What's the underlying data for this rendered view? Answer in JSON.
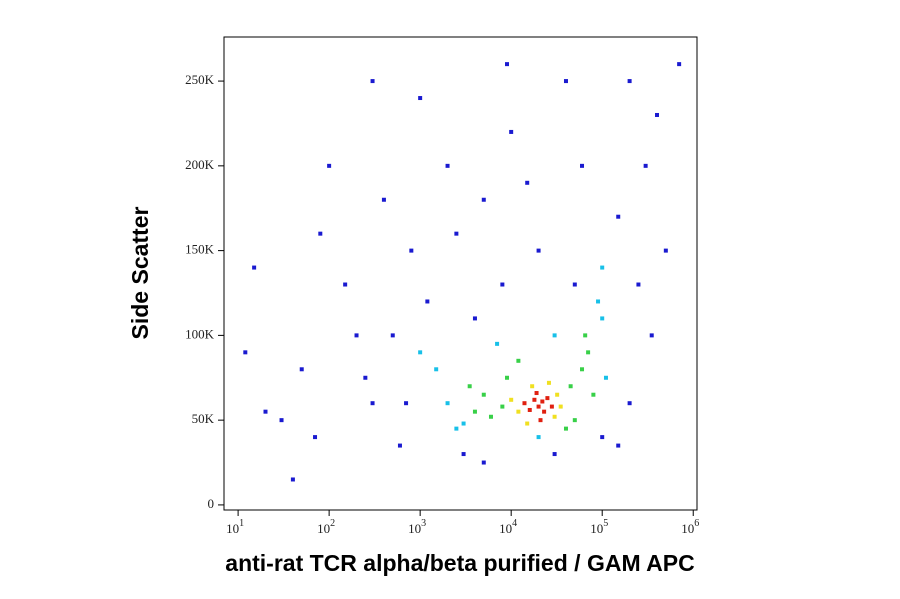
{
  "chart_data": {
    "type": "density-scatter",
    "x_label": "anti-rat TCR alpha/beta purified / GAM APC",
    "y_label": "Side Scatter",
    "xscale": "log",
    "xlim": [
      7,
      1100000
    ],
    "ylim": [
      -3000,
      276000
    ],
    "xticks": [
      {
        "value": 10,
        "label": "10",
        "power": "1"
      },
      {
        "value": 100,
        "label": "10",
        "power": "2"
      },
      {
        "value": 1000,
        "label": "10",
        "power": "3"
      },
      {
        "value": 10000,
        "label": "10",
        "power": "4"
      },
      {
        "value": 100000,
        "label": "10",
        "power": "5"
      },
      {
        "value": 1000000,
        "label": "10",
        "power": "6"
      }
    ],
    "yticks": [
      0,
      {
        "value": 50000,
        "label": "50K"
      },
      {
        "value": 100000,
        "label": "100K"
      },
      {
        "value": 150000,
        "label": "150K"
      },
      {
        "value": 200000,
        "label": "200K"
      },
      {
        "value": 250000,
        "label": "250K"
      }
    ],
    "colormap": [
      "#1a1ad0",
      "#18c0e8",
      "#38d048",
      "#f0e020",
      "#e02010"
    ],
    "x": [
      20000,
      18000,
      23000,
      16000,
      25000,
      21000,
      14000,
      28000,
      19000,
      22000,
      12000,
      30000,
      17000,
      32000,
      10000,
      26000,
      15000,
      35000,
      8000,
      6000,
      45000,
      60000,
      70000,
      50000,
      5000,
      9000,
      40000,
      80000,
      4000,
      65000,
      12000,
      3500,
      3000,
      2000,
      90000,
      100000,
      1500,
      2500,
      7000,
      100000,
      110000,
      20000,
      1000,
      30000,
      500,
      300,
      150,
      50,
      30,
      800,
      2000,
      5000,
      10000,
      200000,
      300000,
      150000,
      250000,
      400,
      100,
      70,
      40,
      1000,
      20000,
      50000,
      200,
      600,
      3000,
      100000,
      200000,
      15,
      20,
      8000,
      40000,
      700000,
      60000,
      300,
      1200,
      15000,
      500000,
      350000,
      12,
      80,
      2500,
      5000,
      250,
      150000,
      400000,
      30000,
      700,
      4000,
      9000
    ],
    "y": [
      58000,
      62000,
      55000,
      56000,
      63000,
      50000,
      60000,
      58000,
      66000,
      61000,
      55000,
      52000,
      70000,
      65000,
      62000,
      72000,
      48000,
      58000,
      58000,
      52000,
      70000,
      80000,
      90000,
      50000,
      65000,
      75000,
      45000,
      65000,
      55000,
      100000,
      85000,
      70000,
      48000,
      60000,
      120000,
      110000,
      80000,
      45000,
      95000,
      140000,
      75000,
      40000,
      90000,
      100000,
      100000,
      60000,
      130000,
      80000,
      50000,
      150000,
      200000,
      180000,
      220000,
      250000,
      200000,
      170000,
      130000,
      180000,
      200000,
      40000,
      15000,
      240000,
      150000,
      130000,
      100000,
      35000,
      30000,
      40000,
      60000,
      140000,
      55000,
      130000,
      250000,
      260000,
      200000,
      250000,
      120000,
      190000,
      150000,
      100000,
      90000,
      160000,
      160000,
      25000,
      75000,
      35000,
      230000,
      30000,
      60000,
      110000,
      260000
    ],
    "density": [
      4,
      4,
      4,
      4,
      4,
      4,
      4,
      4,
      4,
      4,
      3,
      3,
      3,
      3,
      3,
      3,
      3,
      3,
      2,
      2,
      2,
      2,
      2,
      2,
      2,
      2,
      2,
      2,
      2,
      2,
      2,
      2,
      1,
      1,
      1,
      1,
      1,
      1,
      1,
      1,
      1,
      1,
      1,
      1,
      0,
      0,
      0,
      0,
      0,
      0,
      0,
      0,
      0,
      0,
      0,
      0,
      0,
      0,
      0,
      0,
      0,
      0,
      0,
      0,
      0,
      0,
      0,
      0,
      0,
      0,
      0,
      0,
      0,
      0,
      0,
      0,
      0,
      0,
      0,
      0,
      0,
      0,
      0,
      0,
      0,
      0,
      0,
      0,
      0,
      0,
      0
    ]
  }
}
